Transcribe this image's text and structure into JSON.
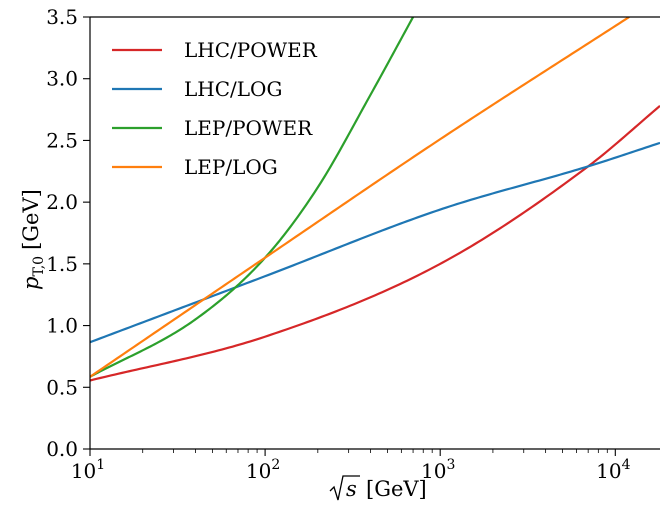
{
  "chart_data": {
    "type": "line",
    "xscale": "log",
    "xlabel": "√s [GeV]",
    "ylabel": "p_T,0 [GeV]",
    "ylabel_main": "p",
    "ylabel_sub": "T,0",
    "ylabel_unit": "[GeV]",
    "xlabel_main": "s",
    "xlabel_unit": "[GeV]",
    "xlim": [
      10,
      18000
    ],
    "ylim": [
      0.0,
      3.5
    ],
    "xticks": [
      {
        "value": 10,
        "base": "10",
        "exp": "1"
      },
      {
        "value": 100,
        "base": "10",
        "exp": "2"
      },
      {
        "value": 1000,
        "base": "10",
        "exp": "3"
      },
      {
        "value": 10000,
        "base": "10",
        "exp": "4"
      }
    ],
    "yticks": [
      "0.0",
      "0.5",
      "1.0",
      "1.5",
      "2.0",
      "2.5",
      "3.0",
      "3.5"
    ],
    "grid": false,
    "legend_position": "top-left",
    "series": [
      {
        "name": "LHC/POWER",
        "color": "#d62728",
        "x": [
          10,
          100,
          1000,
          7000,
          18000
        ],
        "y": [
          0.555,
          0.91,
          1.5,
          2.29,
          2.78
        ]
      },
      {
        "name": "LHC/LOG",
        "color": "#1f77b4",
        "x": [
          10,
          100,
          1000,
          7000,
          18000
        ],
        "y": [
          0.865,
          1.4,
          1.94,
          2.29,
          2.48
        ]
      },
      {
        "name": "LEP/POWER",
        "color": "#2ca02c",
        "x": [
          10,
          40,
          100,
          200,
          400,
          700
        ],
        "y": [
          0.585,
          1.05,
          1.55,
          2.12,
          2.87,
          3.5
        ]
      },
      {
        "name": "LEP/LOG",
        "color": "#ff7f0e",
        "x": [
          10,
          100,
          1000,
          12000
        ],
        "y": [
          0.585,
          1.55,
          2.51,
          3.5
        ]
      }
    ]
  }
}
